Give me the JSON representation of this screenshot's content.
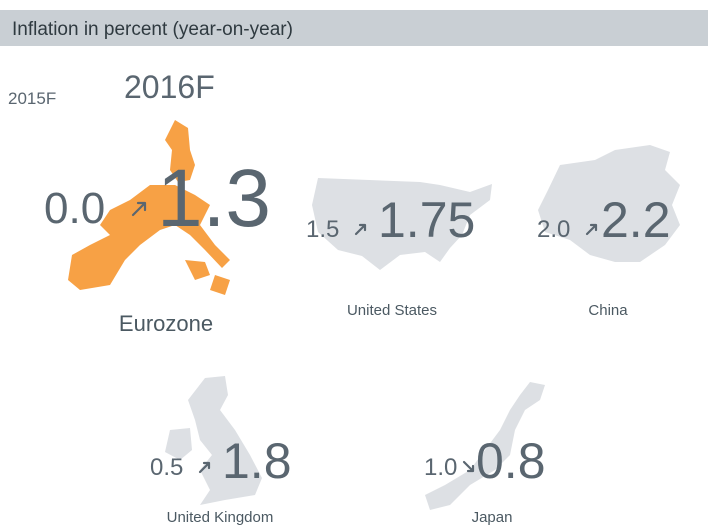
{
  "header": {
    "title": "Inflation in percent (year-on-year)"
  },
  "legend": {
    "previous": "2015F",
    "current": "2016F"
  },
  "regions": [
    {
      "name": "Eurozone",
      "previous": "0.0",
      "current": "1.3"
    },
    {
      "name": "United States",
      "previous": "1.5",
      "current": "1.75"
    },
    {
      "name": "China",
      "previous": "2.0",
      "current": "2.2"
    },
    {
      "name": "United Kingdom",
      "previous": "0.5",
      "current": "1.8"
    },
    {
      "name": "Japan",
      "previous": "1.0",
      "current": "0.8"
    }
  ]
}
